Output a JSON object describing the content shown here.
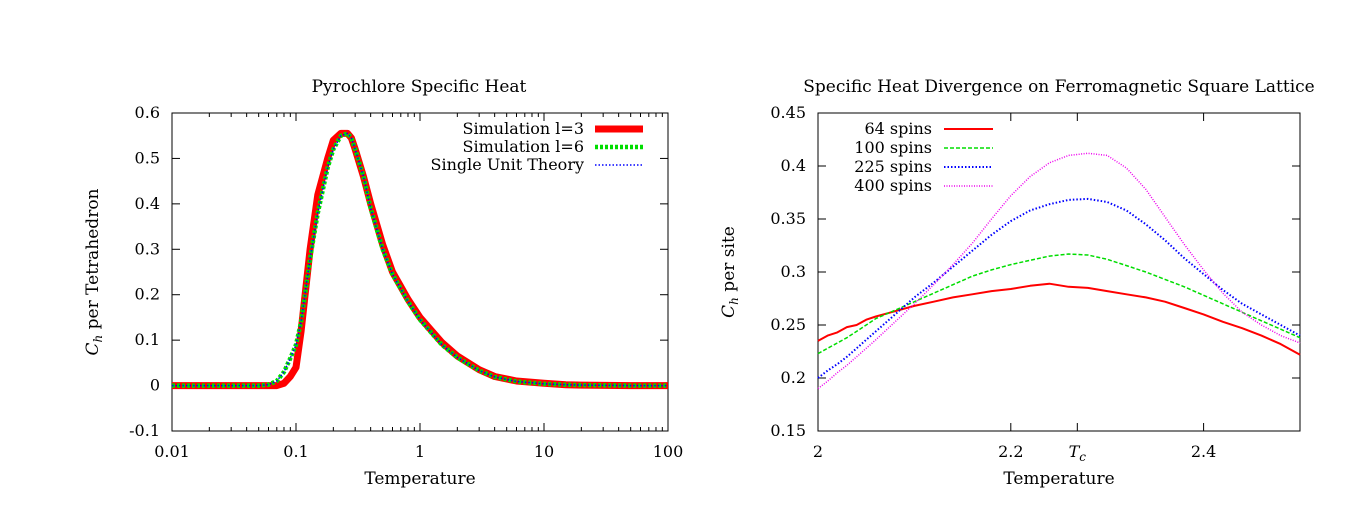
{
  "chart_data": [
    {
      "type": "line",
      "title": "Pyrochlore Specific Heat",
      "xlabel": "Temperature",
      "ylabel": "C_h per Tetrahedron",
      "ylabel_parts": {
        "symbol": "C",
        "sub": "h",
        "rest": " per Tetrahedron"
      },
      "xscale": "log",
      "xlim": [
        0.01,
        100
      ],
      "ylim": [
        -0.1,
        0.6
      ],
      "xticks": [
        0.01,
        0.1,
        1,
        10,
        100
      ],
      "xtick_labels": [
        "0.01",
        "0.1",
        "1",
        "10",
        "100"
      ],
      "yticks": [
        -0.1,
        0,
        0.1,
        0.2,
        0.3,
        0.4,
        0.5,
        0.6
      ],
      "ytick_labels": [
        "-0.1",
        "0",
        "0.1",
        "0.2",
        "0.3",
        "0.4",
        "0.5",
        "0.6"
      ],
      "legend_position": "top-right",
      "series": [
        {
          "name": "Simulation l=3",
          "color": "#ff0000",
          "style": "thick-solid",
          "x": [
            0.01,
            0.03,
            0.06,
            0.07,
            0.08,
            0.09,
            0.1,
            0.11,
            0.13,
            0.15,
            0.18,
            0.2,
            0.23,
            0.26,
            0.28,
            0.3,
            0.35,
            0.4,
            0.5,
            0.6,
            0.8,
            1,
            1.5,
            2,
            3,
            4,
            6,
            10,
            15,
            20,
            50,
            100
          ],
          "y": [
            0,
            0,
            0,
            0,
            0.005,
            0.02,
            0.04,
            0.12,
            0.3,
            0.42,
            0.5,
            0.54,
            0.555,
            0.555,
            0.545,
            0.52,
            0.46,
            0.4,
            0.31,
            0.25,
            0.19,
            0.15,
            0.095,
            0.065,
            0.035,
            0.02,
            0.01,
            0.005,
            0.002,
            0.001,
            0,
            0
          ]
        },
        {
          "name": "Simulation l=6",
          "color": "#00dd00",
          "style": "thick-dotted",
          "x": [
            0.01,
            0.03,
            0.05,
            0.06,
            0.07,
            0.08,
            0.09,
            0.1,
            0.11,
            0.13,
            0.15,
            0.18,
            0.2,
            0.23,
            0.26,
            0.28,
            0.3,
            0.35,
            0.4,
            0.5,
            0.6,
            0.8,
            1,
            1.5,
            2,
            3,
            4,
            6,
            10,
            15,
            20,
            50,
            100
          ],
          "y": [
            0,
            0,
            0,
            0.002,
            0.01,
            0.03,
            0.06,
            0.09,
            0.14,
            0.28,
            0.38,
            0.48,
            0.52,
            0.55,
            0.555,
            0.545,
            0.52,
            0.46,
            0.39,
            0.3,
            0.245,
            0.185,
            0.145,
            0.09,
            0.062,
            0.033,
            0.019,
            0.009,
            0.004,
            0.002,
            0.001,
            0,
            0
          ]
        },
        {
          "name": "Single Unit Theory",
          "color": "#0000ff",
          "style": "thin-dotted",
          "x": [
            0.01,
            0.03,
            0.05,
            0.06,
            0.07,
            0.08,
            0.09,
            0.1,
            0.11,
            0.13,
            0.15,
            0.18,
            0.2,
            0.23,
            0.26,
            0.28,
            0.3,
            0.35,
            0.4,
            0.5,
            0.6,
            0.8,
            1,
            1.5,
            2,
            3,
            4,
            6,
            10,
            15,
            20,
            50,
            100
          ],
          "y": [
            0,
            0,
            0,
            0.002,
            0.01,
            0.03,
            0.06,
            0.09,
            0.14,
            0.28,
            0.38,
            0.48,
            0.52,
            0.55,
            0.555,
            0.545,
            0.52,
            0.46,
            0.39,
            0.3,
            0.245,
            0.185,
            0.145,
            0.09,
            0.062,
            0.033,
            0.019,
            0.009,
            0.004,
            0.002,
            0.001,
            0,
            0
          ]
        }
      ]
    },
    {
      "type": "line",
      "title": "Specific Heat Divergence on Ferromagnetic Square Lattice",
      "xlabel": "Temperature",
      "ylabel": "C_h per site",
      "ylabel_parts": {
        "symbol": "C",
        "sub": "h",
        "rest": " per site"
      },
      "xscale": "linear",
      "xlim": [
        2.0,
        2.5
      ],
      "ylim": [
        0.15,
        0.45
      ],
      "xticks": [
        2.0,
        2.2,
        2.269,
        2.4
      ],
      "xtick_labels": [
        "2",
        "2.2",
        "T_c",
        "2.4"
      ],
      "tc_label": {
        "symbol": "T",
        "sub": "c"
      },
      "yticks": [
        0.15,
        0.2,
        0.25,
        0.3,
        0.35,
        0.4,
        0.45
      ],
      "ytick_labels": [
        "0.15",
        "0.2",
        "0.25",
        "0.3",
        "0.35",
        "0.4",
        "0.45"
      ],
      "legend_position": "top-left",
      "series": [
        {
          "name": "64 spins",
          "color": "#ff0000",
          "style": "solid",
          "x": [
            2.0,
            2.01,
            2.02,
            2.03,
            2.04,
            2.05,
            2.06,
            2.08,
            2.1,
            2.12,
            2.14,
            2.16,
            2.18,
            2.2,
            2.22,
            2.24,
            2.26,
            2.28,
            2.3,
            2.32,
            2.34,
            2.36,
            2.38,
            2.4,
            2.42,
            2.44,
            2.46,
            2.48,
            2.5
          ],
          "y": [
            0.235,
            0.24,
            0.243,
            0.248,
            0.25,
            0.255,
            0.258,
            0.263,
            0.268,
            0.272,
            0.276,
            0.279,
            0.282,
            0.284,
            0.287,
            0.289,
            0.286,
            0.285,
            0.282,
            0.279,
            0.276,
            0.272,
            0.266,
            0.26,
            0.253,
            0.247,
            0.24,
            0.232,
            0.222
          ]
        },
        {
          "name": "100 spins",
          "color": "#00dd00",
          "style": "dashed",
          "x": [
            2.0,
            2.01,
            2.02,
            2.03,
            2.04,
            2.05,
            2.06,
            2.08,
            2.1,
            2.12,
            2.14,
            2.16,
            2.18,
            2.2,
            2.22,
            2.24,
            2.26,
            2.28,
            2.3,
            2.32,
            2.34,
            2.36,
            2.38,
            2.4,
            2.42,
            2.44,
            2.46,
            2.48,
            2.5
          ],
          "y": [
            0.223,
            0.228,
            0.233,
            0.238,
            0.244,
            0.25,
            0.256,
            0.264,
            0.272,
            0.28,
            0.288,
            0.296,
            0.302,
            0.307,
            0.311,
            0.315,
            0.317,
            0.316,
            0.312,
            0.306,
            0.3,
            0.293,
            0.286,
            0.278,
            0.27,
            0.262,
            0.254,
            0.246,
            0.238
          ]
        },
        {
          "name": "225 spins",
          "color": "#0000ff",
          "style": "dotted",
          "x": [
            2.0,
            2.01,
            2.02,
            2.03,
            2.04,
            2.05,
            2.06,
            2.08,
            2.1,
            2.12,
            2.14,
            2.16,
            2.18,
            2.2,
            2.22,
            2.24,
            2.26,
            2.28,
            2.3,
            2.32,
            2.34,
            2.36,
            2.38,
            2.4,
            2.42,
            2.44,
            2.46,
            2.48,
            2.5
          ],
          "y": [
            0.2,
            0.207,
            0.213,
            0.22,
            0.228,
            0.236,
            0.244,
            0.26,
            0.276,
            0.29,
            0.305,
            0.32,
            0.335,
            0.348,
            0.358,
            0.364,
            0.368,
            0.369,
            0.366,
            0.358,
            0.345,
            0.33,
            0.313,
            0.298,
            0.283,
            0.27,
            0.26,
            0.25,
            0.24
          ]
        },
        {
          "name": "400 spins",
          "color": "#ee00ee",
          "style": "fine-dotted",
          "x": [
            2.0,
            2.01,
            2.02,
            2.03,
            2.04,
            2.05,
            2.06,
            2.08,
            2.1,
            2.12,
            2.14,
            2.16,
            2.18,
            2.2,
            2.22,
            2.24,
            2.26,
            2.28,
            2.3,
            2.32,
            2.34,
            2.36,
            2.38,
            2.4,
            2.42,
            2.44,
            2.46,
            2.48,
            2.5
          ],
          "y": [
            0.19,
            0.197,
            0.205,
            0.212,
            0.22,
            0.228,
            0.236,
            0.253,
            0.27,
            0.288,
            0.307,
            0.327,
            0.35,
            0.372,
            0.39,
            0.403,
            0.41,
            0.412,
            0.41,
            0.398,
            0.378,
            0.352,
            0.326,
            0.302,
            0.28,
            0.262,
            0.25,
            0.24,
            0.233
          ]
        }
      ]
    }
  ]
}
